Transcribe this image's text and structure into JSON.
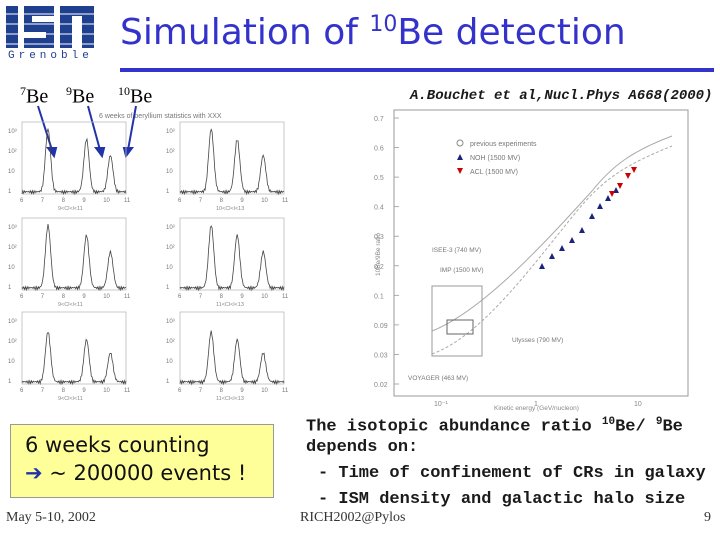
{
  "logo": {
    "text": "isn",
    "subtitle": "Grenoble"
  },
  "title": {
    "prefix": "Simulation of ",
    "sup": "10",
    "suffix": "Be detection"
  },
  "isotopes": [
    {
      "sup": "7",
      "label": "Be"
    },
    {
      "sup": "9",
      "label": "Be"
    },
    {
      "sup": "10",
      "label": "Be"
    }
  ],
  "reference": "A.Bouchet et al,Nucl.Phys A668(2000)",
  "left_figure": {
    "caption": "6 weeks of beryllium statistics with XXX",
    "row_axis_labels": [
      "9<Cl<l<11",
      "10<Cl<l<13",
      "9<Cl<l<11",
      "11<Cl<l<13",
      "9<Cl<l<11",
      "11<Cl<l<13"
    ],
    "x_ticks": [
      "6",
      "7",
      "8",
      "9",
      "10",
      "11"
    ],
    "y_ticks": [
      "10³",
      "10²",
      "10",
      "1"
    ]
  },
  "right_figure": {
    "y_ticks": [
      "0.7",
      "0.6",
      "0.5",
      "0.4",
      "0.3",
      "0.2",
      "0.1",
      "0.09",
      "0.03",
      "0.02"
    ],
    "x_ticks": [
      "10⁻¹",
      "1",
      "10"
    ],
    "legend": [
      {
        "label": "previous experiments",
        "marker": "circle",
        "color": "#888888"
      },
      {
        "label": "NOH (1500 MV)",
        "marker": "triangle-up",
        "color": "#1a237e"
      },
      {
        "label": "ACL (1500 MV)",
        "marker": "triangle-down",
        "color": "#cc0000"
      }
    ],
    "annotations": [
      "ISEE-3 (740 MV)",
      "IMP (1500 MV)",
      "Ulysses (790 MV)",
      "VOYAGER (463 MV)"
    ],
    "xlabel": "Kinetic energy (GeV/nucleon)",
    "ylabel": "10Be/9Be ratio"
  },
  "box": {
    "line1": "6 weeks counting",
    "line2": " ~ 200000 events !",
    "arrow": "➔"
  },
  "description": {
    "line1_prefix": "The isotopic abundance ratio ",
    "line1_sup1": "10",
    "line1_mid": "Be/ ",
    "line1_sup2": "9",
    "line1_suffix": "Be",
    "line2": "depends on:",
    "bullet1": "- Time of confinement of CRs in galaxy",
    "bullet2": "- ISM density and galactic halo size"
  },
  "footer": {
    "date": "May 5-10, 2002",
    "conference": "RICH2002@Pylos",
    "page": "9"
  },
  "colors": {
    "title": "#3333cc",
    "box_bg": "#ffff99",
    "logo": "#1f3f8f",
    "arrow": "#2233aa"
  }
}
